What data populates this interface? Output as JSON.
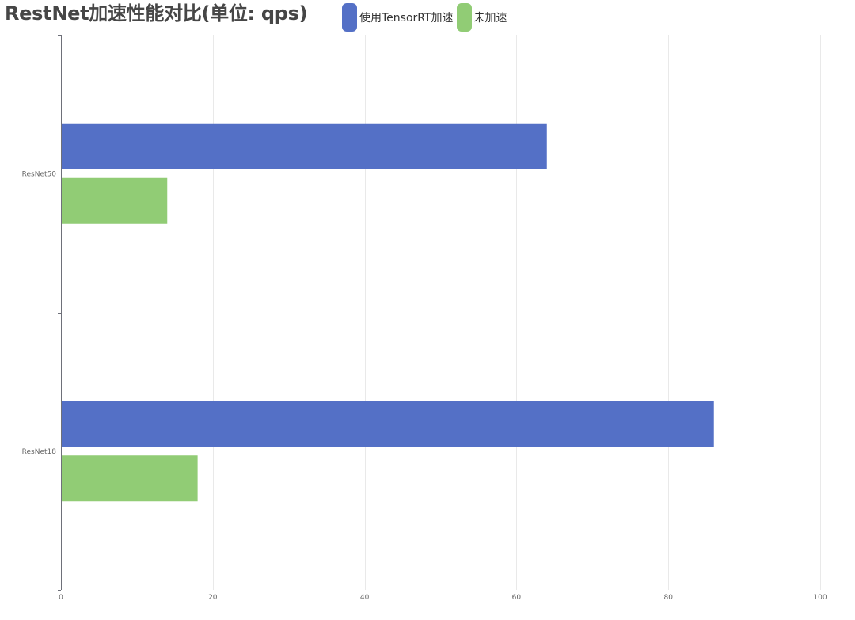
{
  "chart_data": {
    "type": "bar",
    "orientation": "horizontal",
    "title": "RestNet加速性能对比(单位: qps)",
    "categories": [
      "ResNet50",
      "ResNet18"
    ],
    "series": [
      {
        "name": "使用TensorRT加速",
        "color": "#5470c6",
        "values": [
          64,
          86
        ]
      },
      {
        "name": "未加速",
        "color": "#91cc75",
        "values": [
          14,
          18
        ]
      }
    ],
    "xlim": [
      0,
      100
    ],
    "xticks": [
      0,
      20,
      40,
      60,
      80,
      100
    ],
    "grid": true,
    "legend_position": "top"
  }
}
